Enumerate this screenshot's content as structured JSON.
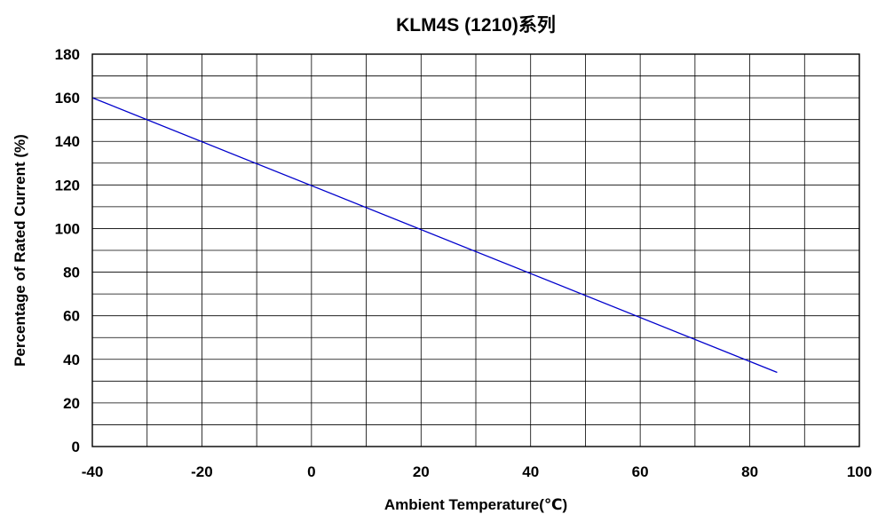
{
  "chart_data": {
    "type": "line",
    "title": "KLM4S (1210)系列",
    "xlabel": "Ambient Temperature(℃)",
    "ylabel": "Percentage of Rated Current (%)",
    "xlim": [
      -40,
      100
    ],
    "ylim": [
      0,
      180
    ],
    "x_ticks": [
      -40,
      -20,
      0,
      20,
      40,
      60,
      80,
      100
    ],
    "x_tick_labels": [
      "-40",
      "-20",
      "0",
      "20",
      "40",
      "60",
      "80",
      "100"
    ],
    "y_ticks": [
      0,
      20,
      40,
      60,
      80,
      100,
      120,
      140,
      160,
      180
    ],
    "y_tick_labels": [
      "0",
      "20",
      "40",
      "60",
      "80",
      "100",
      "120",
      "140",
      "160",
      "180"
    ],
    "x_minor_step": 10,
    "y_minor_step": 10,
    "grid": true,
    "legend": "none",
    "series": [
      {
        "color": "#0000cc",
        "x": [
          -40,
          85
        ],
        "y": [
          160,
          34
        ]
      }
    ]
  }
}
